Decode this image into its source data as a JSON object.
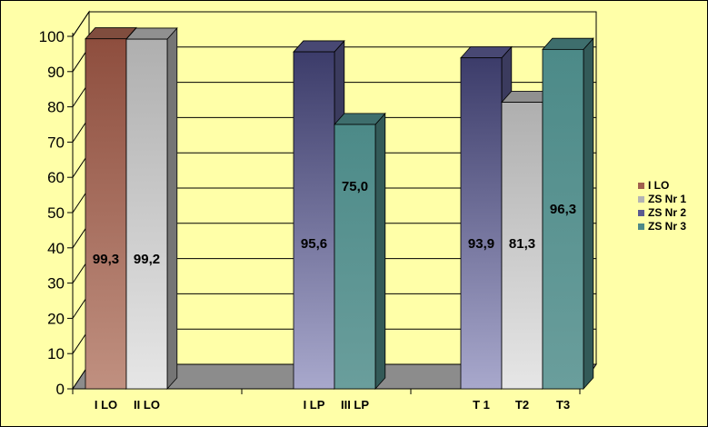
{
  "chart_data": {
    "type": "bar",
    "ylim": [
      0,
      100
    ],
    "yticks": [
      0,
      10,
      20,
      30,
      40,
      50,
      60,
      70,
      80,
      90,
      100
    ],
    "grid": true,
    "legend_position": "right",
    "series": [
      {
        "name": "I LO",
        "color": "#A0604E"
      },
      {
        "name": "ZS Nr 1",
        "color": "#B4B4B4"
      },
      {
        "name": "ZS Nr 2",
        "color": "#5A5A90"
      },
      {
        "name": "ZS Nr 3",
        "color": "#4E8A88"
      }
    ],
    "bars": [
      {
        "group": 0,
        "category": "I LO",
        "series": 0,
        "value": 99.3,
        "label": "99,3"
      },
      {
        "group": 0,
        "category": "II LO",
        "series": 1,
        "value": 99.2,
        "label": "99,2"
      },
      {
        "group": 1,
        "category": "I LP",
        "series": 2,
        "value": 95.6,
        "label": "95,6"
      },
      {
        "group": 1,
        "category": "III LP",
        "series": 3,
        "value": 75.0,
        "label": "75,0"
      },
      {
        "group": 2,
        "category": "T 1",
        "series": 2,
        "value": 93.9,
        "label": "93,9"
      },
      {
        "group": 2,
        "category": "T2",
        "series": 1,
        "value": 81.3,
        "label": "81,3"
      },
      {
        "group": 2,
        "category": "T3",
        "series": 3,
        "value": 96.3,
        "label": "96,3"
      }
    ]
  }
}
